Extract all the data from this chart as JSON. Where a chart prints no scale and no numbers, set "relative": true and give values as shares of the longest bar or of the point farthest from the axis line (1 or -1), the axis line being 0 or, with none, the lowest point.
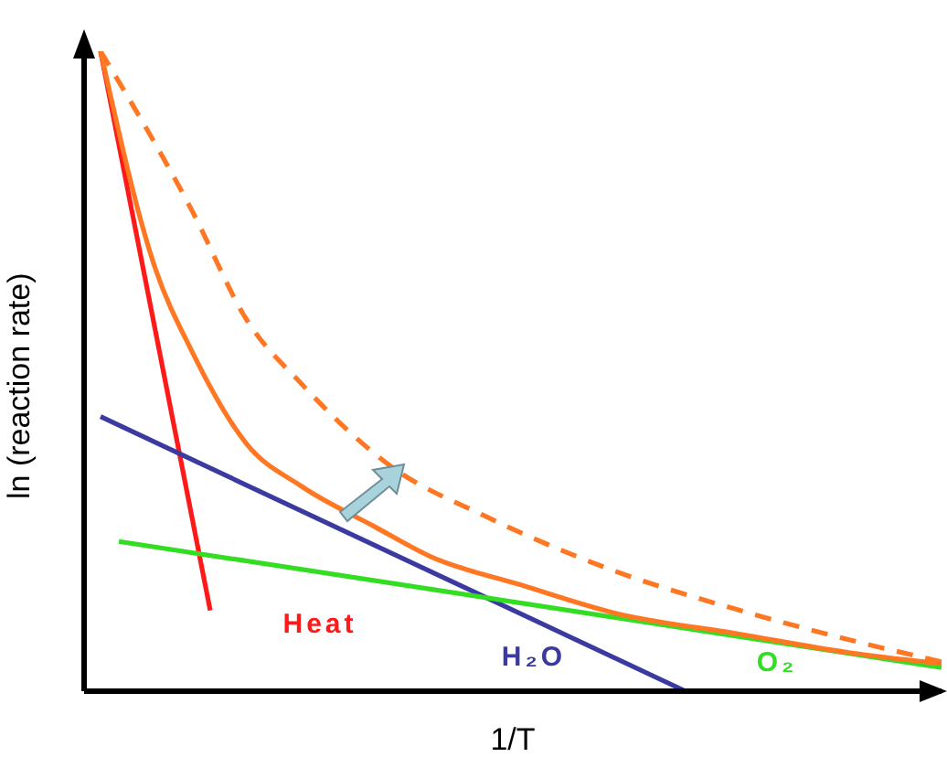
{
  "chart_data": {
    "type": "line",
    "relative": true,
    "xlabel": "1/T",
    "ylabel": "ln (reaction rate)",
    "grid": false,
    "legend": false,
    "marker": "none",
    "categories": [
      null,
      null,
      null,
      null,
      null,
      null,
      null,
      null,
      null,
      null,
      null,
      null,
      null,
      null,
      null,
      null,
      null,
      null,
      null,
      null,
      null,
      null,
      null,
      null,
      null,
      null,
      null,
      null,
      null,
      null,
      null,
      null,
      null,
      null,
      null,
      null,
      null,
      null,
      null,
      null,
      null,
      null,
      null,
      null,
      null,
      null,
      null
    ],
    "series": [
      {
        "name": "Heat",
        "color": "#ff1a1a",
        "line_style": "solid",
        "values": [
          1.0,
          null,
          null,
          null,
          null,
          null,
          0.126,
          null,
          null,
          null,
          null,
          null,
          null,
          null,
          null,
          null,
          null,
          null,
          null,
          null,
          null,
          null,
          null,
          null,
          null,
          null,
          null,
          null,
          null,
          null,
          null,
          null,
          null,
          null,
          null,
          null,
          null,
          null,
          null,
          null,
          null,
          null,
          null,
          null,
          null,
          null,
          null
        ]
      },
      {
        "name": "H₂O",
        "color": "#3a3aa0",
        "line_style": "solid",
        "values": [
          0.429,
          null,
          null,
          null,
          null,
          null,
          null,
          null,
          null,
          null,
          null,
          null,
          null,
          null,
          null,
          null,
          null,
          null,
          null,
          null,
          null,
          null,
          null,
          null,
          null,
          null,
          null,
          null,
          null,
          null,
          null,
          null,
          0,
          null,
          null,
          null,
          null,
          null,
          null,
          null,
          null,
          null,
          null,
          null,
          null,
          null,
          null
        ]
      },
      {
        "name": "O₂",
        "color": "#33dd22",
        "line_style": "solid",
        "values": [
          null,
          0.234,
          null,
          null,
          null,
          null,
          null,
          null,
          null,
          null,
          null,
          null,
          null,
          null,
          null,
          null,
          null,
          null,
          null,
          null,
          null,
          null,
          null,
          null,
          null,
          null,
          null,
          null,
          null,
          null,
          null,
          null,
          null,
          null,
          null,
          null,
          null,
          null,
          null,
          null,
          null,
          null,
          null,
          null,
          null,
          null,
          0.037
        ]
      },
      {
        "color": "#ff7722",
        "line_style": "solid",
        "values": [
          1.0,
          null,
          null,
          0.66,
          null,
          0.531,
          null,
          null,
          0.386,
          null,
          null,
          0.32,
          null,
          null,
          null,
          0.257,
          null,
          null,
          0.211,
          null,
          null,
          null,
          null,
          0.166,
          null,
          null,
          null,
          null,
          0.123,
          null,
          null,
          null,
          null,
          null,
          null,
          0.089,
          null,
          null,
          null,
          null,
          null,
          0.06,
          null,
          null,
          null,
          null,
          0.043
        ]
      },
      {
        "color": "#ff7722",
        "line_style": "dashed",
        "values": [
          1.0,
          null,
          null,
          null,
          null,
          0.751,
          null,
          null,
          0.58,
          null,
          null,
          0.48,
          null,
          null,
          null,
          null,
          0.349,
          null,
          null,
          null,
          null,
          0.274,
          null,
          null,
          null,
          null,
          null,
          null,
          0.189,
          null,
          null,
          null,
          null,
          null,
          null,
          0.126,
          null,
          null,
          null,
          null,
          null,
          0.08,
          null,
          null,
          null,
          null,
          0.046
        ]
      }
    ]
  }
}
